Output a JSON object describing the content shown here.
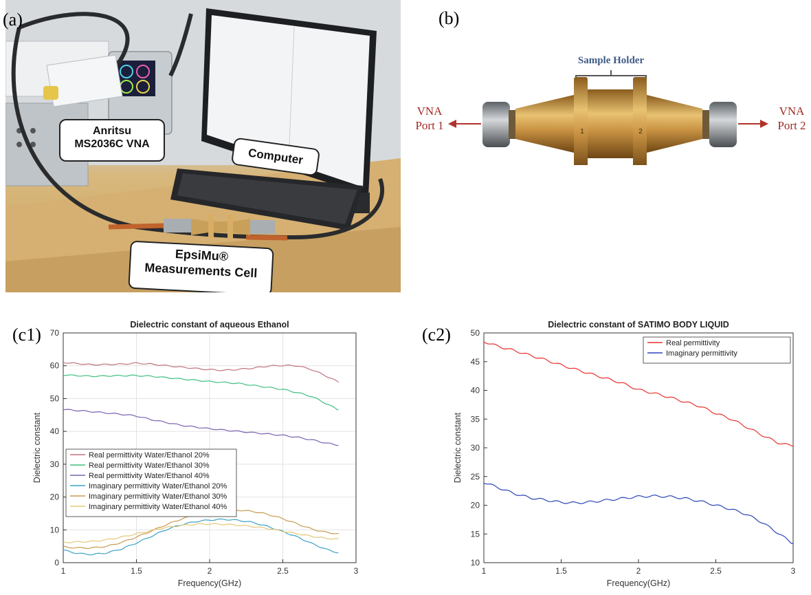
{
  "panels": {
    "a": "(a)",
    "b": "(b)",
    "c1": "(c1)",
    "c2": "(c2)"
  },
  "photo_a": {
    "vna_label_line1": "Anritsu",
    "vna_label_line2": "MS2036C VNA",
    "computer_label": "Computer",
    "cell_label_line1": "EpsiMu®",
    "cell_label_line2": "Measurements Cell"
  },
  "diagram_b": {
    "sample_holder": "Sample Holder",
    "port1_line1": "VNA",
    "port1_line2": "Port 1",
    "port2_line1": "VNA",
    "port2_line2": "Port 2",
    "marker_1": "1",
    "marker_2": "2"
  },
  "chart_data": [
    {
      "type": "line",
      "title": "Dielectric constant of aqueous Ethanol",
      "xlabel": "Frequency(GHz)",
      "ylabel": "Dielectric constant",
      "xlim": [
        1,
        3
      ],
      "ylim": [
        0,
        70
      ],
      "xticks": [
        1,
        1.5,
        2,
        2.5,
        3
      ],
      "xtick_labels": [
        "1",
        "1.5",
        "2",
        "2.5",
        "3"
      ],
      "yticks": [
        0,
        10,
        20,
        30,
        40,
        50,
        60,
        70
      ],
      "ytick_labels": [
        "0",
        "10",
        "20",
        "30",
        "40",
        "50",
        "60",
        "70"
      ],
      "grid": true,
      "legend_position": "middle-left",
      "series": [
        {
          "name": "Real permittivity Water/Ethanol 20%",
          "color": "#c0737f",
          "x": [
            1.0,
            1.2,
            1.4,
            1.5,
            1.6,
            1.8,
            2.0,
            2.1,
            2.2,
            2.3,
            2.4,
            2.5,
            2.6,
            2.7,
            2.8,
            2.88
          ],
          "y": [
            61.0,
            60.3,
            60.5,
            60.8,
            60.5,
            59.6,
            58.8,
            58.6,
            58.9,
            59.3,
            59.9,
            60.1,
            60.0,
            58.8,
            56.8,
            55.0
          ]
        },
        {
          "name": "Real permittivity Water/Ethanol 30%",
          "color": "#3fbf7f",
          "x": [
            1.0,
            1.2,
            1.4,
            1.5,
            1.6,
            1.8,
            2.0,
            2.2,
            2.4,
            2.5,
            2.6,
            2.7,
            2.8,
            2.88
          ],
          "y": [
            57.2,
            56.8,
            57.0,
            57.0,
            56.8,
            56.0,
            55.2,
            54.6,
            53.4,
            52.8,
            51.8,
            50.6,
            48.4,
            46.5
          ]
        },
        {
          "name": "Real permittivity Water/Ethanol 40%",
          "color": "#7a62b0",
          "x": [
            1.0,
            1.2,
            1.4,
            1.5,
            1.6,
            1.8,
            2.0,
            2.2,
            2.4,
            2.5,
            2.6,
            2.7,
            2.8,
            2.88
          ],
          "y": [
            46.7,
            46.0,
            45.2,
            44.7,
            43.6,
            41.9,
            40.8,
            40.0,
            39.2,
            38.8,
            38.2,
            37.4,
            36.4,
            35.8
          ]
        },
        {
          "name": "Imaginary permittivity Water/Ethanol 20%",
          "color": "#3aa3c4",
          "x": [
            1.0,
            1.1,
            1.2,
            1.3,
            1.4,
            1.5,
            1.6,
            1.7,
            1.8,
            1.9,
            2.0,
            2.1,
            2.2,
            2.3,
            2.4,
            2.5,
            2.6,
            2.7,
            2.8,
            2.88
          ],
          "y": [
            3.8,
            2.8,
            2.5,
            3.0,
            4.2,
            6.0,
            8.0,
            10.0,
            11.5,
            12.5,
            13.0,
            13.2,
            12.9,
            12.2,
            11.0,
            9.5,
            7.8,
            5.8,
            4.0,
            3.0
          ]
        },
        {
          "name": "Imaginary permittivity Water/Ethanol 30%",
          "color": "#c79b4f",
          "x": [
            1.0,
            1.1,
            1.2,
            1.3,
            1.4,
            1.5,
            1.6,
            1.7,
            1.8,
            1.9,
            2.0,
            2.1,
            2.2,
            2.3,
            2.4,
            2.5,
            2.6,
            2.7,
            2.8,
            2.88
          ],
          "y": [
            4.8,
            4.5,
            4.5,
            5.0,
            6.2,
            7.8,
            9.6,
            11.5,
            13.2,
            14.5,
            15.4,
            15.9,
            16.0,
            15.6,
            14.7,
            13.4,
            11.8,
            10.2,
            9.2,
            8.8
          ]
        },
        {
          "name": "Imaginary permittivity Water/Ethanol 40%",
          "color": "#e3c878",
          "x": [
            1.0,
            1.1,
            1.2,
            1.3,
            1.4,
            1.5,
            1.6,
            1.7,
            1.8,
            1.9,
            2.0,
            2.1,
            2.2,
            2.3,
            2.4,
            2.5,
            2.6,
            2.7,
            2.8,
            2.88
          ],
          "y": [
            6.2,
            6.3,
            6.5,
            7.0,
            7.8,
            8.8,
            9.8,
            10.7,
            11.3,
            11.7,
            11.8,
            11.7,
            11.4,
            11.0,
            10.4,
            9.6,
            8.8,
            8.0,
            7.4,
            7.2
          ]
        }
      ]
    },
    {
      "type": "line",
      "title": "Dielectric constant of SATIMO BODY LIQUID",
      "xlabel": "Frequency(GHz)",
      "ylabel": "Dielectric constant",
      "xlim": [
        1,
        3
      ],
      "ylim": [
        10,
        50
      ],
      "xticks": [
        1,
        1.5,
        2,
        2.5,
        3
      ],
      "xtick_labels": [
        "1",
        "1.5",
        "2",
        "2.5",
        "3"
      ],
      "yticks": [
        10,
        15,
        20,
        25,
        30,
        35,
        40,
        45,
        50
      ],
      "ytick_labels": [
        "10",
        "15",
        "20",
        "25",
        "30",
        "35",
        "40",
        "45",
        "50"
      ],
      "grid": false,
      "legend_position": "top-right",
      "series": [
        {
          "name": "Real permittivity",
          "color": "#e8302c",
          "x": [
            1.0,
            1.1,
            1.2,
            1.3,
            1.4,
            1.5,
            1.6,
            1.7,
            1.8,
            1.9,
            2.0,
            2.1,
            2.2,
            2.3,
            2.4,
            2.5,
            2.6,
            2.7,
            2.8,
            2.9,
            3.0
          ],
          "y": [
            48.5,
            47.6,
            46.9,
            46.1,
            45.3,
            44.4,
            43.6,
            42.8,
            42.0,
            41.2,
            40.1,
            39.5,
            38.8,
            38.0,
            37.2,
            36.0,
            35.0,
            33.6,
            32.2,
            30.9,
            30.3
          ]
        },
        {
          "name": "Imaginary permittivity",
          "color": "#2b45b8",
          "x": [
            1.0,
            1.1,
            1.2,
            1.3,
            1.4,
            1.5,
            1.6,
            1.7,
            1.8,
            1.9,
            2.0,
            2.1,
            2.2,
            2.3,
            2.4,
            2.5,
            2.6,
            2.7,
            2.8,
            2.9,
            3.0
          ],
          "y": [
            24.0,
            23.0,
            22.0,
            21.3,
            20.9,
            20.5,
            20.4,
            20.6,
            20.9,
            21.2,
            21.5,
            21.6,
            21.5,
            21.2,
            20.7,
            20.0,
            19.3,
            18.4,
            17.0,
            15.2,
            13.3
          ]
        }
      ]
    }
  ]
}
